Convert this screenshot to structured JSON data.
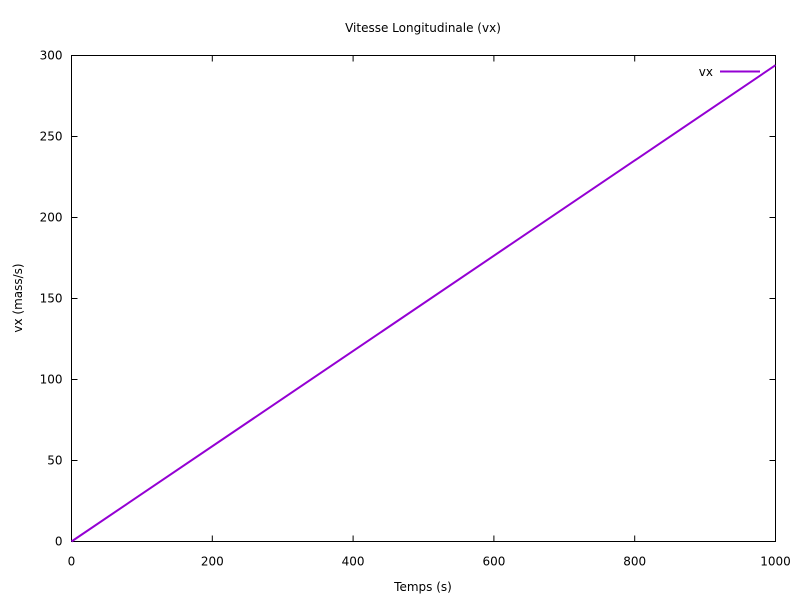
{
  "chart_data": {
    "type": "line",
    "title": "Vitesse Longitudinale (vx)",
    "xlabel": "Temps (s)",
    "ylabel": "vx (mass/s)",
    "xlim": [
      0,
      1000
    ],
    "ylim": [
      0,
      300
    ],
    "xticks": [
      0,
      200,
      400,
      600,
      800,
      1000
    ],
    "yticks": [
      0,
      50,
      100,
      150,
      200,
      250,
      300
    ],
    "grid": false,
    "legend_position": "top-right",
    "series": [
      {
        "name": "vx",
        "color": "#9400d3",
        "x": [
          0,
          1000
        ],
        "y": [
          0,
          294
        ]
      }
    ]
  }
}
